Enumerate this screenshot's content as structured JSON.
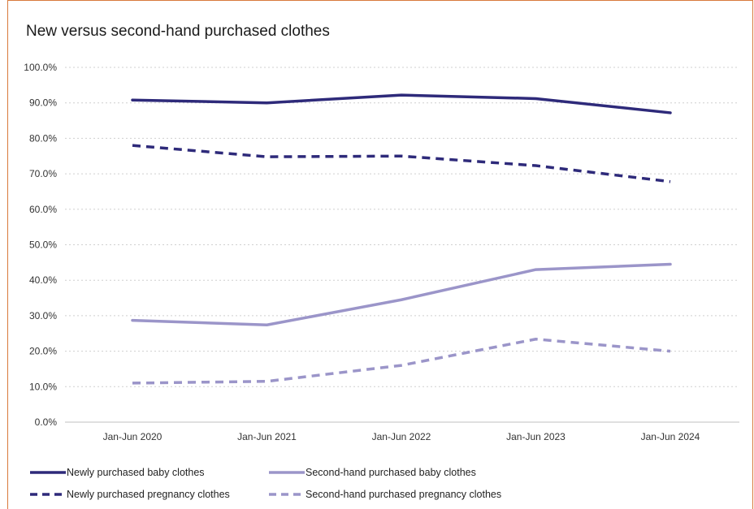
{
  "chart_data": {
    "type": "line",
    "title": "New versus second-hand purchased clothes",
    "xlabel": "",
    "ylabel": "",
    "categories": [
      "Jan-Jun 2020",
      "Jan-Jun 2021",
      "Jan-Jun 2022",
      "Jan-Jun 2023",
      "Jan-Jun 2024"
    ],
    "ylim": [
      0,
      100
    ],
    "yticks": [
      "0.0%",
      "10.0%",
      "20.0%",
      "30.0%",
      "40.0%",
      "50.0%",
      "60.0%",
      "70.0%",
      "80.0%",
      "90.0%",
      "100.0%"
    ],
    "grid": true,
    "legend_position": "bottom",
    "series": [
      {
        "name": "Newly purchased baby clothes",
        "values": [
          90.8,
          90.0,
          92.2,
          91.2,
          87.2
        ],
        "color": "#2e2a7a",
        "dashed": false
      },
      {
        "name": "Second-hand purchased baby clothes",
        "values": [
          28.7,
          27.4,
          34.5,
          43.0,
          44.5
        ],
        "color": "#9b95c9",
        "dashed": false
      },
      {
        "name": "Newly purchased pregnancy clothes",
        "values": [
          78.0,
          74.8,
          75.0,
          72.3,
          67.8
        ],
        "color": "#2e2a7a",
        "dashed": true
      },
      {
        "name": "Second-hand purchased pregnancy clothes",
        "values": [
          11.0,
          11.5,
          16.0,
          23.4,
          20.0
        ],
        "color": "#9b95c9",
        "dashed": true
      }
    ]
  }
}
